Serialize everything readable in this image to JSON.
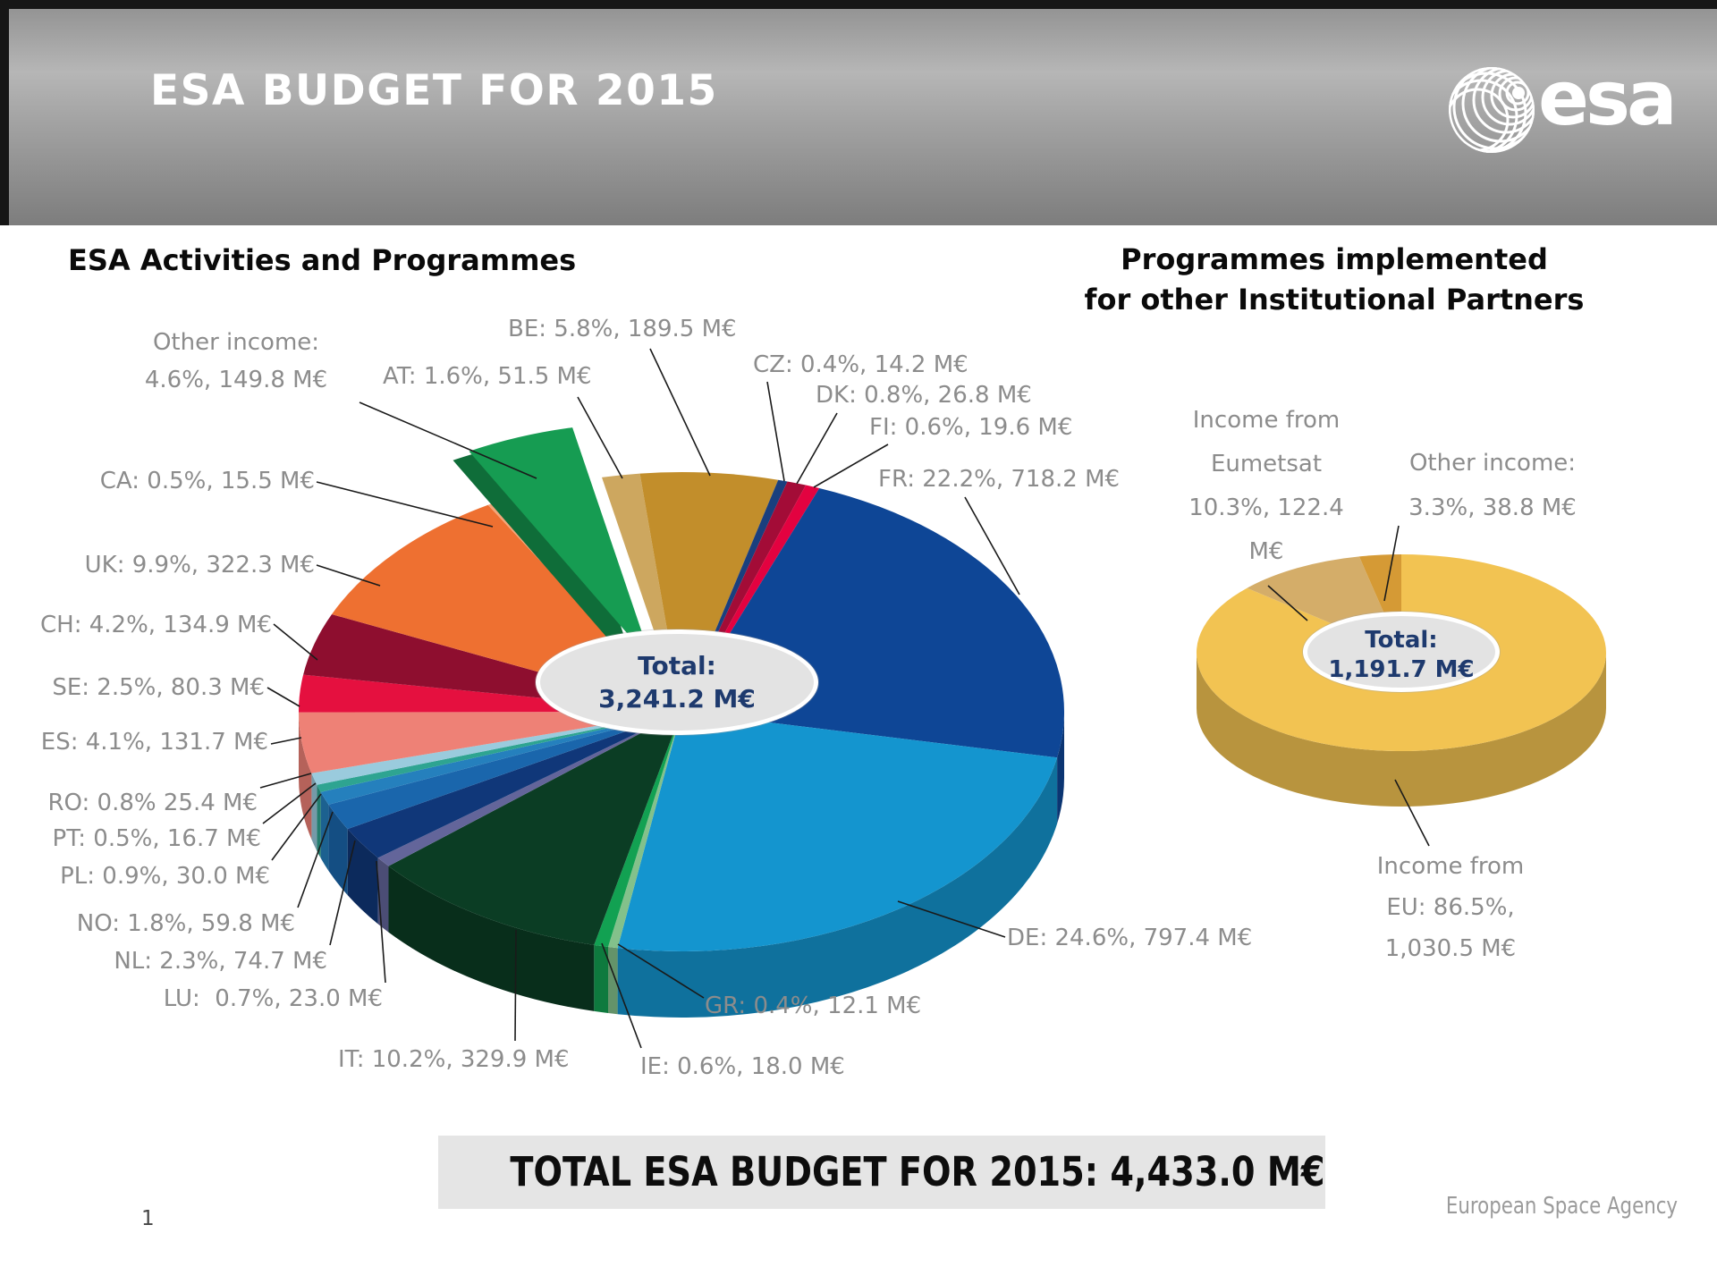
{
  "header": {
    "title": "ESA BUDGET FOR 2015",
    "logo_text": "esa"
  },
  "chart_data": [
    {
      "type": "pie",
      "title": "ESA Activities and Programmes",
      "center_label": {
        "title": "Total:",
        "value": "3,241.2 M€"
      },
      "total_meur": 3241.2,
      "unit": "M€",
      "slices": [
        {
          "code": "AT",
          "pct": 1.6,
          "value_meur": 51.5,
          "label": "AT: 1.6%, 51.5 M€",
          "color": "#CDA75F"
        },
        {
          "code": "BE",
          "pct": 5.8,
          "value_meur": 189.5,
          "label": "BE: 5.8%, 189.5 M€",
          "color": "#C28E2B"
        },
        {
          "code": "CZ",
          "pct": 0.4,
          "value_meur": 14.2,
          "label": "CZ: 0.4%, 14.2 M€",
          "color": "#1A3F7E"
        },
        {
          "code": "DK",
          "pct": 0.8,
          "value_meur": 26.8,
          "label": "DK: 0.8%, 26.8 M€",
          "color": "#A30C37"
        },
        {
          "code": "FI",
          "pct": 0.6,
          "value_meur": 19.6,
          "label": "FI: 0.6%, 19.6 M€",
          "color": "#E30240"
        },
        {
          "code": "FR",
          "pct": 22.2,
          "value_meur": 718.2,
          "label": "FR: 22.2%, 718.2 M€",
          "color": "#0E4696"
        },
        {
          "code": "DE",
          "pct": 24.6,
          "value_meur": 797.4,
          "label": "DE: 24.6%, 797.4 M€",
          "color": "#1495CF"
        },
        {
          "code": "GR",
          "pct": 0.4,
          "value_meur": 12.1,
          "label": "GR: 0.4%, 12.1 M€",
          "color": "#83C18B"
        },
        {
          "code": "IE",
          "pct": 0.6,
          "value_meur": 18.0,
          "label": "IE: 0.6%, 18.0 M€",
          "color": "#12A152"
        },
        {
          "code": "IT",
          "pct": 10.2,
          "value_meur": 329.9,
          "label": "IT: 10.2%, 329.9 M€",
          "color": "#0B3D24"
        },
        {
          "code": "LU",
          "pct": 0.7,
          "value_meur": 23.0,
          "label": "LU:  0.7%, 23.0 M€",
          "color": "#63659A"
        },
        {
          "code": "NL",
          "pct": 2.3,
          "value_meur": 74.7,
          "label": "NL: 2.3%, 74.7 M€",
          "color": "#103779"
        },
        {
          "code": "NO",
          "pct": 1.8,
          "value_meur": 59.8,
          "label": "NO: 1.8%, 59.8 M€",
          "color": "#1A66AC"
        },
        {
          "code": "PL",
          "pct": 0.9,
          "value_meur": 30.0,
          "label": "PL: 0.9%, 30.0 M€",
          "color": "#2580BD"
        },
        {
          "code": "PT",
          "pct": 0.5,
          "value_meur": 16.7,
          "label": "PT: 0.5%, 16.7 M€",
          "color": "#2EA491"
        },
        {
          "code": "RO",
          "pct": 0.8,
          "value_meur": 25.4,
          "label": "RO: 0.8% 25.4 M€",
          "color": "#9ACBDD"
        },
        {
          "code": "ES",
          "pct": 4.1,
          "value_meur": 131.7,
          "label": "ES: 4.1%, 131.7 M€",
          "color": "#EE8176"
        },
        {
          "code": "SE",
          "pct": 2.5,
          "value_meur": 80.3,
          "label": "SE: 2.5%, 80.3 M€",
          "color": "#E5103F"
        },
        {
          "code": "CH",
          "pct": 4.2,
          "value_meur": 134.9,
          "label": "CH: 4.2%, 134.9 M€",
          "color": "#8E0E2F"
        },
        {
          "code": "UK",
          "pct": 9.9,
          "value_meur": 322.3,
          "label": "UK: 9.9%, 322.3 M€",
          "color": "#EE7031"
        },
        {
          "code": "CA",
          "pct": 0.5,
          "value_meur": 15.5,
          "label": "CA: 0.5%, 15.5 M€",
          "color": "#F2A679"
        },
        {
          "code": "OTHER",
          "pct": 4.6,
          "value_meur": 149.8,
          "label_lines": [
            "Other income:",
            "4.6%, 149.8 M€"
          ],
          "color": "#169C52",
          "exploded": true
        }
      ]
    },
    {
      "type": "pie",
      "title": "Programmes implemented for other Institutional Partners",
      "title_lines": [
        "Programmes implemented",
        "for other Institutional Partners"
      ],
      "center_label": {
        "title": "Total:",
        "value": "1,191.7 M€"
      },
      "total_meur": 1191.7,
      "unit": "M€",
      "slices": [
        {
          "code": "EU",
          "pct": 86.5,
          "value_meur": 1030.5,
          "label_lines": [
            "Income from",
            "EU: 86.5%,",
            "1,030.5 M€"
          ],
          "color": "#F2C352"
        },
        {
          "code": "EUMETSAT",
          "pct": 10.3,
          "value_meur": 122.4,
          "label_lines": [
            "Income from",
            "Eumetsat",
            "10.3%, 122.4",
            "M€"
          ],
          "color": "#D4AD69"
        },
        {
          "code": "OTHER",
          "pct": 3.3,
          "value_meur": 38.8,
          "label_lines": [
            "Other income:",
            "3.3%, 38.8 M€"
          ],
          "color": "#D59A35"
        }
      ]
    }
  ],
  "footer": {
    "banner": "TOTAL ESA BUDGET FOR 2015: 4,433.0 M€",
    "agency": "European Space Agency",
    "page_number": "1"
  }
}
